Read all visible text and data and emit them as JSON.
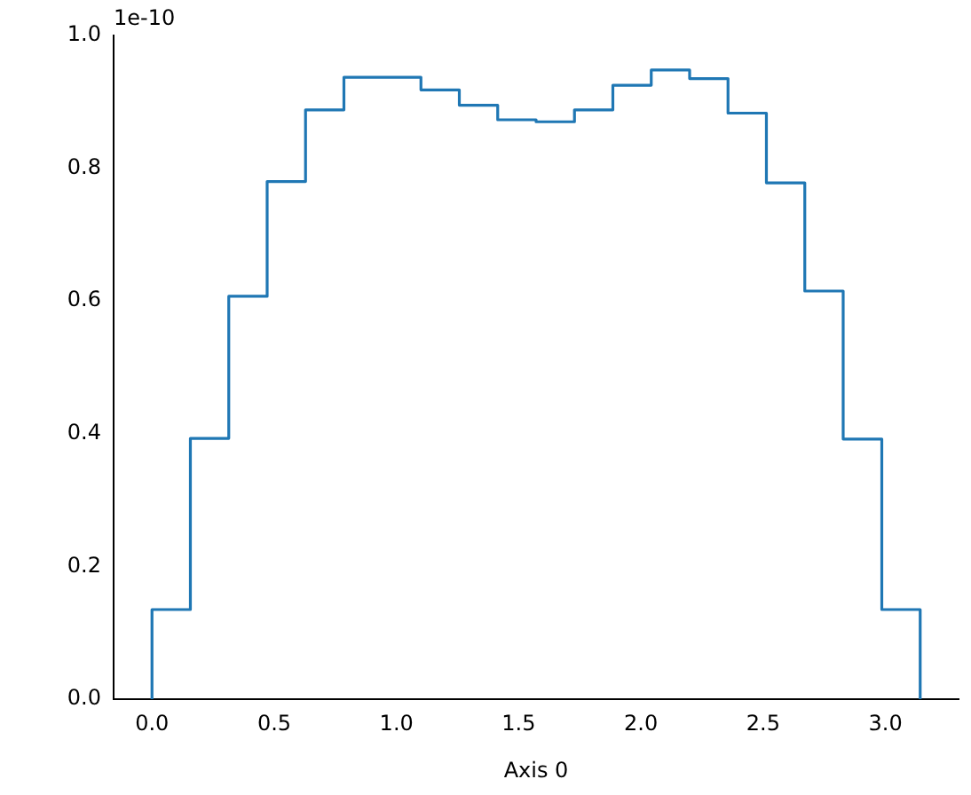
{
  "chart_data": {
    "type": "histogram",
    "xlabel": "Axis 0",
    "annotations": [
      "1e-10"
    ],
    "bins": [
      0,
      0.157,
      0.314,
      0.471,
      0.628,
      0.785,
      0.942,
      1.1,
      1.257,
      1.414,
      1.571,
      1.728,
      1.885,
      2.042,
      2.199,
      2.356,
      2.513,
      2.67,
      2.827,
      2.985,
      3.142
    ],
    "values": [
      0.135,
      0.393,
      0.607,
      0.78,
      0.888,
      0.937,
      0.937,
      0.918,
      0.895,
      0.873,
      0.87,
      0.888,
      0.925,
      0.948,
      0.935,
      0.883,
      0.778,
      0.615,
      0.392,
      0.135
    ],
    "color": "#1f77b4",
    "xlim": [
      -0.157,
      3.299
    ],
    "xticks": [
      {
        "value": 0,
        "label": "0.0"
      },
      0.5,
      {
        "value": 1,
        "label": "1.0"
      },
      1.5,
      {
        "value": 2,
        "label": "2.0"
      },
      2.5,
      {
        "value": 3,
        "label": "3.0"
      }
    ],
    "ylim": [
      0,
      1
    ],
    "yticks": [
      {
        "value": 0,
        "label": "0.0"
      },
      0.2,
      0.4,
      0.6,
      0.8,
      {
        "value": 1,
        "label": "1.0"
      }
    ],
    "grid": false,
    "legend": false
  }
}
